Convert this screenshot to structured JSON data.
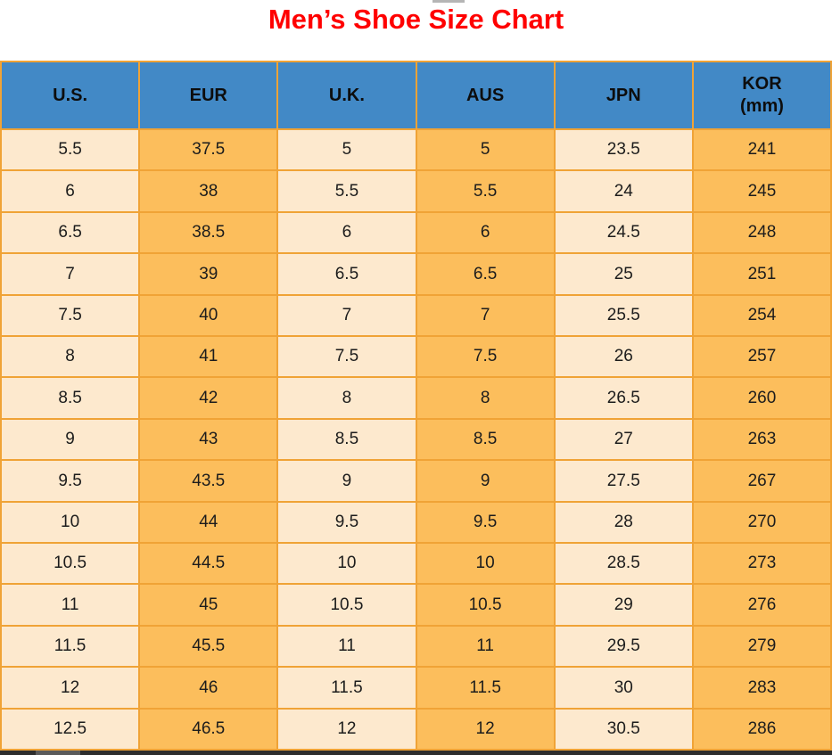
{
  "page": {
    "title": "Men’s Shoe Size Chart"
  },
  "colors": {
    "title_color": "#ff0000",
    "header_bg": "#4289c6",
    "header_text": "#0d0d0d",
    "col_light": "#fde9ce",
    "col_orange": "#fcbe5c",
    "border": "#f0a336",
    "cell_text": "#1c1c1c",
    "scrollbar_track": "#2d2d2d",
    "scrollbar_thumb": "#5a5a5a",
    "top_artifact": "#b5b5b5"
  },
  "chart_data": {
    "type": "table",
    "title": "Men’s Shoe Size Chart",
    "columns": [
      "U.S.",
      "EUR",
      "U.K.",
      "AUS",
      "JPN",
      "KOR (mm)"
    ],
    "rows": [
      [
        "5.5",
        "37.5",
        "5",
        "5",
        "23.5",
        "241"
      ],
      [
        "6",
        "38",
        "5.5",
        "5.5",
        "24",
        "245"
      ],
      [
        "6.5",
        "38.5",
        "6",
        "6",
        "24.5",
        "248"
      ],
      [
        "7",
        "39",
        "6.5",
        "6.5",
        "25",
        "251"
      ],
      [
        "7.5",
        "40",
        "7",
        "7",
        "25.5",
        "254"
      ],
      [
        "8",
        "41",
        "7.5",
        "7.5",
        "26",
        "257"
      ],
      [
        "8.5",
        "42",
        "8",
        "8",
        "26.5",
        "260"
      ],
      [
        "9",
        "43",
        "8.5",
        "8.5",
        "27",
        "263"
      ],
      [
        "9.5",
        "43.5",
        "9",
        "9",
        "27.5",
        "267"
      ],
      [
        "10",
        "44",
        "9.5",
        "9.5",
        "28",
        "270"
      ],
      [
        "10.5",
        "44.5",
        "10",
        "10",
        "28.5",
        "273"
      ],
      [
        "11",
        "45",
        "10.5",
        "10.5",
        "29",
        "276"
      ],
      [
        "11.5",
        "45.5",
        "11",
        "11",
        "29.5",
        "279"
      ],
      [
        "12",
        "46",
        "11.5",
        "11.5",
        "30",
        "283"
      ],
      [
        "12.5",
        "46.5",
        "12",
        "12",
        "30.5",
        "286"
      ]
    ]
  },
  "table_display": {
    "columns": [
      {
        "line1": "U.S.",
        "line2": ""
      },
      {
        "line1": "EUR",
        "line2": ""
      },
      {
        "line1": "U.K.",
        "line2": ""
      },
      {
        "line1": "AUS",
        "line2": ""
      },
      {
        "line1": "JPN",
        "line2": ""
      },
      {
        "line1": "KOR",
        "line2": "(mm)"
      }
    ]
  }
}
